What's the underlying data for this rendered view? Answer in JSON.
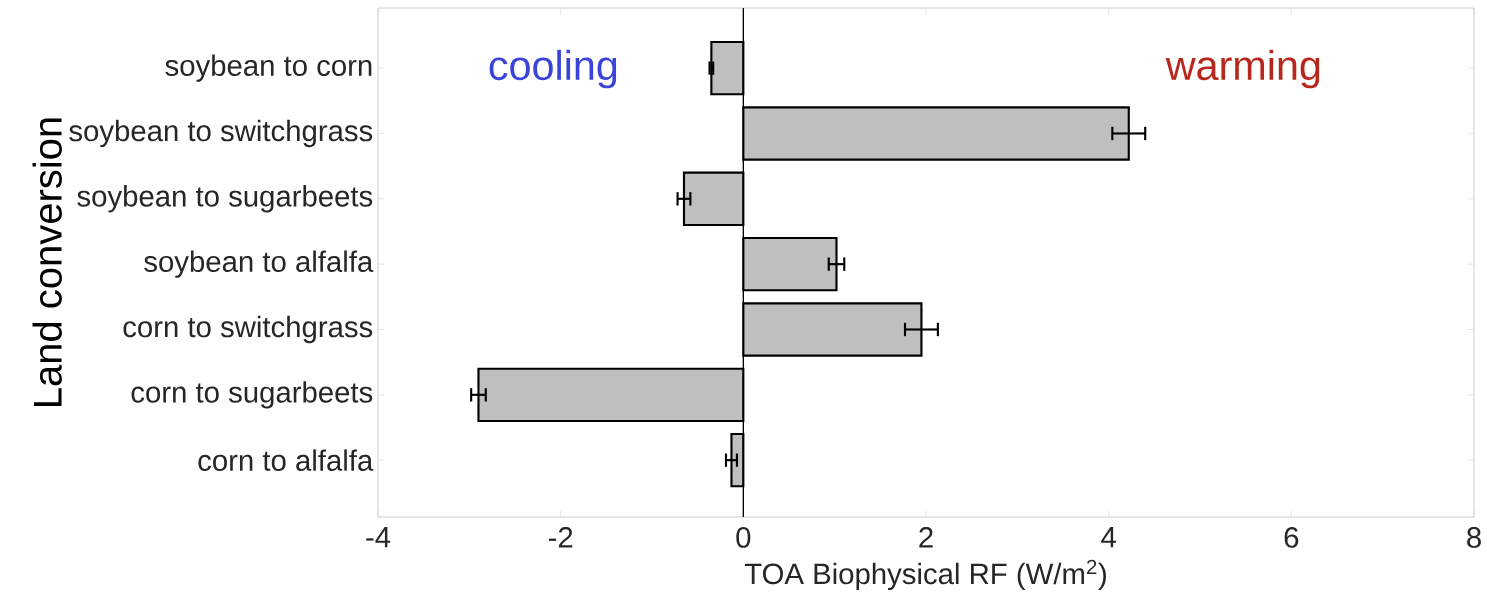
{
  "chart_data": {
    "type": "bar",
    "orientation": "horizontal",
    "xlabel": "TOA Biophysical RF (W/m$^{2}$)",
    "ylabel": "Land conversion",
    "categories": [
      "soybean to corn",
      "soybean to switchgrass",
      "soybean to sugarbeets",
      "soybean to alfalfa",
      "corn to switchgrass",
      "corn to sugarbeets",
      "corn to alfalfa"
    ],
    "values": [
      -0.35,
      4.22,
      -0.65,
      1.02,
      1.95,
      -2.9,
      -0.13
    ],
    "errors": [
      0.02,
      0.18,
      0.07,
      0.085,
      0.18,
      0.08,
      0.06
    ],
    "color": "#bfbfbf",
    "xlim": [
      -4,
      8
    ],
    "xticks": [
      -4,
      -2,
      0,
      2,
      4,
      6,
      8
    ],
    "ref_lines": [
      {
        "axis": "x",
        "value": 0,
        "color": "#000000"
      }
    ],
    "annotations": [
      "cooling",
      "warming"
    ],
    "grid": false
  }
}
